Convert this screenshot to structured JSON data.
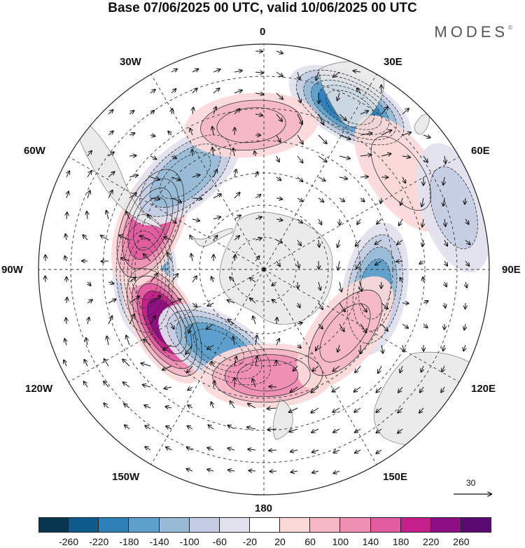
{
  "header": {
    "title": "Base 07/06/2025 00 UTC, valid 10/06/2025 00 UTC",
    "brand": "MODES",
    "brand_mark": "©"
  },
  "map": {
    "projection": "south-polar-stereographic",
    "longitude_labels": [
      "0",
      "30E",
      "60E",
      "90E",
      "120E",
      "150E",
      "180",
      "150W",
      "120W",
      "90W",
      "60W",
      "30W"
    ],
    "reference_vector_label": "30",
    "land_color": "#e8e8e8",
    "ocean_color": "#ffffff",
    "anomalies": [
      {
        "id": "neg-90w",
        "lon": -92,
        "lat": -53,
        "value": -230
      },
      {
        "id": "pos-110w",
        "lon": -118,
        "lat": -55,
        "value": 230
      },
      {
        "id": "pos-70w",
        "lon": -68,
        "lat": -52,
        "value": 180
      },
      {
        "id": "neg-140w",
        "lon": -150,
        "lat": -62,
        "value": -160
      },
      {
        "id": "pos-180",
        "lon": 178,
        "lat": -57,
        "value": 140
      },
      {
        "id": "neg-25e",
        "lon": 28,
        "lat": -33,
        "value": -200
      },
      {
        "id": "neg-45w",
        "lon": -40,
        "lat": -52,
        "value": -120
      },
      {
        "id": "neg-100e",
        "lon": 100,
        "lat": -55,
        "value": -140
      },
      {
        "id": "pos-125e",
        "lon": 128,
        "lat": -58,
        "value": 100
      },
      {
        "id": "pos-0",
        "lon": -5,
        "lat": -45,
        "value": 80
      },
      {
        "id": "pos-55e",
        "lon": 55,
        "lat": -38,
        "value": 60
      },
      {
        "id": "neg-75e",
        "lon": 72,
        "lat": -28,
        "value": -60
      }
    ]
  },
  "colorbar": {
    "colors": [
      "#08354f",
      "#0f5a8c",
      "#2f7fb8",
      "#5ea0cc",
      "#98bad6",
      "#c4cde3",
      "#e1e2ee",
      "#ffffff",
      "#fbd9d9",
      "#f5b7c6",
      "#ef8fb4",
      "#e15ca0",
      "#c41f8b",
      "#8e0f83",
      "#5a0b72"
    ],
    "ticks": [
      "-260",
      "-220",
      "-180",
      "-140",
      "-100",
      "-60",
      "-20",
      "20",
      "60",
      "100",
      "140",
      "180",
      "220",
      "260"
    ]
  }
}
